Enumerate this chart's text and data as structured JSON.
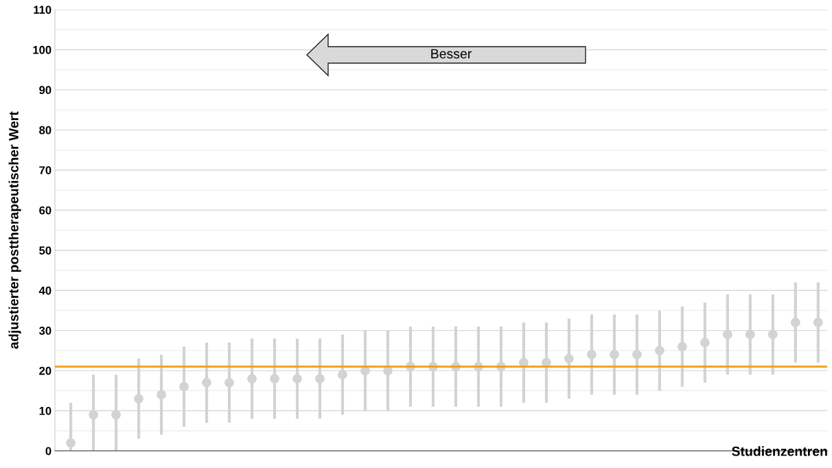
{
  "chart_data": {
    "type": "scatter",
    "ylabel": "adjustierter posttherapeutischer Wert",
    "xlabel": "Studienzentren",
    "annotations": [
      "Besser"
    ],
    "categories": [
      null,
      null,
      null,
      null,
      null,
      null,
      null,
      null,
      null,
      null,
      null,
      null,
      null,
      null,
      null,
      null,
      null,
      null,
      null,
      null,
      null,
      null,
      null,
      null,
      null,
      null,
      null,
      null,
      null,
      null,
      null,
      null,
      null,
      null
    ],
    "series": [
      {
        "color": "#d3d3d3",
        "values": [
          2,
          9,
          9,
          13,
          14,
          16,
          17,
          17,
          18,
          18,
          18,
          18,
          19,
          20,
          20,
          21,
          21,
          21,
          21,
          21,
          22,
          22,
          23,
          24,
          24,
          24,
          25,
          26,
          27,
          29,
          29,
          29,
          32,
          32
        ],
        "errors": [
          [
            0,
            12
          ],
          [
            0,
            19
          ],
          [
            0,
            19
          ],
          10,
          10,
          10,
          10,
          10,
          10,
          10,
          10,
          10,
          10,
          10,
          10,
          10,
          10,
          10,
          10,
          10,
          10,
          10,
          10,
          10,
          10,
          10,
          10,
          10,
          10,
          10,
          10,
          10,
          10,
          10
        ]
      }
    ],
    "ylim": [
      0,
      110
    ],
    "yticks": [
      0,
      {
        "value": 5,
        "label": null
      },
      10,
      {
        "value": 15,
        "label": null
      },
      20,
      {
        "value": 25,
        "label": null
      },
      30,
      {
        "value": 35,
        "label": null
      },
      40,
      {
        "value": 45,
        "label": null
      },
      50,
      {
        "value": 55,
        "label": null
      },
      60,
      {
        "value": 65,
        "label": null
      },
      70,
      {
        "value": 75,
        "label": null
      },
      80,
      {
        "value": 85,
        "label": null
      },
      90,
      {
        "value": 95,
        "label": null
      },
      100,
      {
        "value": 105,
        "label": null
      },
      110
    ],
    "ref_lines": [
      {
        "axis": "y",
        "value": 21,
        "color": "#f0a020"
      }
    ],
    "grid": "y",
    "marker": "circle",
    "legend": false
  }
}
